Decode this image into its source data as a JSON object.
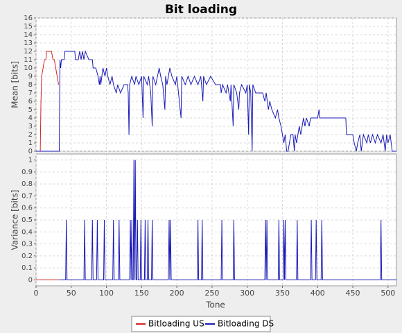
{
  "chart_data": {
    "type": "line",
    "title": "Bit loading",
    "x_label": "Tone",
    "xlim": [
      0,
      512
    ],
    "xticks": [
      0,
      50,
      100,
      150,
      200,
      250,
      300,
      350,
      400,
      450,
      500
    ],
    "grid": true,
    "legend": "bottom",
    "panels": [
      {
        "y_label": "Mean [bits]",
        "ylim": [
          0,
          16
        ],
        "yticks": [
          0,
          1,
          2,
          3,
          4,
          5,
          6,
          7,
          8,
          9,
          10,
          11,
          12,
          13,
          14,
          15,
          16
        ],
        "series": [
          {
            "name": "Bitloading US",
            "color": "#d62020",
            "x": [
              6,
              7,
              8,
              10,
              12,
              14,
              15,
              22,
              24,
              26,
              28,
              30,
              32
            ],
            "values": [
              0,
              6,
              9,
              10,
              11,
              11,
              12,
              12,
              11,
              11,
              10,
              9,
              8
            ]
          },
          {
            "name": "Bitloading DS",
            "color": "#1a1ab8",
            "x": [
              0,
              33,
              34,
              35,
              36,
              40,
              41,
              55,
              56,
              60,
              62,
              64,
              66,
              68,
              70,
              75,
              80,
              81,
              85,
              88,
              90,
              91,
              92,
              95,
              98,
              100,
              102,
              105,
              108,
              110,
              114,
              116,
              120,
              125,
              130,
              131,
              132,
              133,
              136,
              140,
              142,
              146,
              150,
              152,
              153,
              158,
              160,
              163,
              165,
              166,
              170,
              175,
              177,
              180,
              183,
              184,
              186,
              190,
              193,
              198,
              200,
              206,
              207,
              212,
              216,
              220,
              225,
              230,
              234,
              237,
              238,
              242,
              248,
              255,
              262,
              263,
              265,
              270,
              272,
              276,
              277,
              280,
              281,
              285,
              288,
              289,
              292,
              298,
              300,
              302,
              303,
              305,
              307,
              308,
              312,
              318,
              322,
              325,
              327,
              330,
              332,
              335,
              340,
              343,
              345,
              348,
              350,
              352,
              354,
              356,
              358,
              360,
              362,
              365,
              367,
              368,
              370,
              372,
              374,
              376,
              378,
              380,
              382,
              384,
              388,
              390,
              393,
              396,
              400,
              402,
              403,
              440,
              441,
              450,
              452,
              455,
              457,
              460,
              462,
              465,
              470,
              472,
              475,
              478,
              482,
              485,
              490,
              493,
              496,
              498,
              500,
              503,
              506,
              512
            ],
            "values": [
              0,
              0,
              11,
              10,
              11,
              11,
              12,
              12,
              11,
              11,
              12,
              11,
              12,
              11,
              12,
              11,
              11,
              10,
              10,
              9,
              8,
              9,
              8,
              10,
              9,
              10,
              9,
              8,
              9,
              8,
              7,
              8,
              7,
              8,
              8,
              7,
              2,
              8,
              9,
              8,
              9,
              8,
              9,
              4,
              9,
              8,
              9,
              7,
              3,
              9,
              8,
              10,
              9,
              8,
              5,
              9,
              8,
              10,
              9,
              8,
              9,
              4,
              9,
              8,
              9,
              8,
              9,
              8,
              9,
              6,
              9,
              8,
              9,
              8,
              8,
              7,
              8,
              7,
              8,
              6,
              8,
              3,
              8,
              7,
              5,
              7,
              8,
              7,
              8,
              2,
              8,
              7,
              0,
              8,
              7,
              7,
              7,
              6,
              7,
              5,
              6,
              5,
              4,
              5,
              4,
              3,
              2,
              1,
              2,
              0,
              0,
              1,
              2,
              2,
              0,
              2,
              1,
              2,
              3,
              2,
              3,
              4,
              3,
              4,
              3,
              4,
              4,
              4,
              4,
              5,
              4,
              4,
              2,
              2,
              1,
              0,
              1,
              2,
              0,
              2,
              1,
              2,
              1,
              2,
              1,
              2,
              1,
              2,
              0,
              2,
              1,
              2,
              0,
              0
            ]
          }
        ]
      },
      {
        "y_label": "Variance [bits]",
        "ylim": [
          -0.05,
          1.05
        ],
        "yticks": [
          0,
          0.1,
          0.2,
          0.3,
          0.4,
          0.5,
          0.6,
          0.7,
          0.8,
          0.9,
          1
        ],
        "series": [
          {
            "color": "#d62020",
            "x": [
              0,
              33
            ],
            "values": [
              0,
              0
            ]
          },
          {
            "color": "#1a1ab8",
            "x": [
              33,
              42,
              43,
              44,
              68,
              69,
              70,
              79,
              80,
              81,
              86,
              87,
              88,
              96,
              97,
              98,
              109,
              110,
              111,
              117,
              118,
              119,
              133,
              134,
              135,
              136,
              137,
              138,
              139,
              140,
              141,
              142,
              143,
              144,
              145,
              148,
              149,
              150,
              154,
              155,
              156,
              158,
              159,
              160,
              164,
              165,
              166,
              188,
              189,
              190,
              191,
              192,
              229,
              230,
              231,
              235,
              236,
              237,
              263,
              264,
              265,
              280,
              281,
              282,
              325,
              326,
              327,
              328,
              329,
              344,
              345,
              346,
              351,
              352,
              353,
              354,
              355,
              370,
              371,
              372,
              390,
              391,
              392,
              397,
              398,
              399,
              405,
              406,
              407,
              489,
              490,
              491,
              512
            ],
            "values": [
              0,
              0,
              0.5,
              0,
              0,
              0.5,
              0,
              0,
              0.5,
              0,
              0,
              0.5,
              0,
              0,
              0.5,
              0,
              0,
              0.5,
              0,
              0,
              0.5,
              0,
              0,
              0.5,
              0,
              0.5,
              0,
              0,
              1,
              0,
              1,
              0,
              0,
              0.5,
              0,
              0,
              0.5,
              0,
              0,
              0.5,
              0,
              0,
              0.5,
              0,
              0,
              0.5,
              0,
              0,
              0.5,
              0,
              0.5,
              0,
              0,
              0.5,
              0,
              0,
              0.5,
              0,
              0,
              0.5,
              0,
              0,
              0.5,
              0,
              0,
              0.5,
              0,
              0.5,
              0,
              0,
              0.5,
              0,
              0,
              0.5,
              0,
              0.5,
              0,
              0,
              0.5,
              0,
              0,
              0.5,
              0,
              0,
              0.5,
              0,
              0,
              0.5,
              0,
              0,
              0.5,
              0,
              0
            ]
          }
        ]
      }
    ]
  }
}
